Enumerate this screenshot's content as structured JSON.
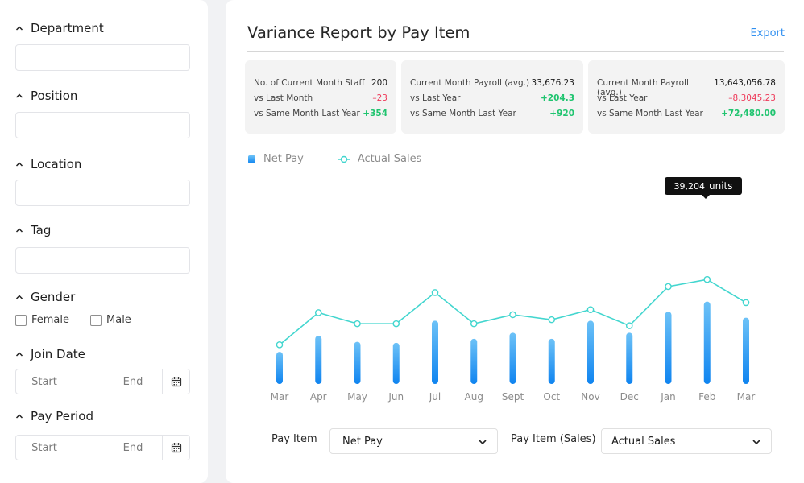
{
  "sidebar": {
    "filters": [
      {
        "label": "Department"
      },
      {
        "label": "Position"
      },
      {
        "label": "Location"
      },
      {
        "label": "Tag"
      },
      {
        "label": "Gender"
      },
      {
        "label": "Join Date"
      },
      {
        "label": "Pay Period"
      }
    ],
    "gender_options": [
      "Female",
      "Male"
    ],
    "date_range": {
      "start": "Start",
      "dash": "–",
      "end": "End"
    }
  },
  "header": {
    "title": "Variance Report by Pay Item",
    "export_label": "Export"
  },
  "stats": [
    {
      "rows": [
        {
          "label": "No. of Current Month Staff",
          "value": "200"
        },
        {
          "label": "vs Last Month",
          "value": "–23"
        },
        {
          "label": "vs Same Month Last Year",
          "value": "+354"
        }
      ]
    },
    {
      "rows": [
        {
          "label": "Current Month Payroll (avg.)",
          "value": "33,676.23"
        },
        {
          "label": "vs Last Year",
          "value": "+204.3"
        },
        {
          "label": "vs Same Month Last Year",
          "value": "+920"
        }
      ]
    },
    {
      "rows": [
        {
          "label": "Current Month Payroll (avg.)",
          "value": "13,643,056.78"
        },
        {
          "label": "vs Last Year",
          "value": "–8,3045.23"
        },
        {
          "label": "vs Same Month Last Year",
          "value": "+72,480.00"
        }
      ]
    }
  ],
  "legend": {
    "bar": "Net Pay",
    "line": "Actual Sales"
  },
  "tooltip": {
    "value": "39,204",
    "unit": "units"
  },
  "chart_data": {
    "type": "bar",
    "categories": [
      "Mar",
      "Apr",
      "May",
      "Jun",
      "Jul",
      "Aug",
      "Sept",
      "Oct",
      "Nov",
      "Dec",
      "Jan",
      "Feb",
      "Mar"
    ],
    "series": [
      {
        "name": "Net Pay",
        "type": "bar",
        "values": [
          32,
          48,
          42,
          41,
          63,
          45,
          51,
          45,
          63,
          51,
          72,
          82,
          66
        ]
      },
      {
        "name": "Actual Sales",
        "type": "line",
        "values": [
          39,
          71,
          60,
          60,
          91,
          60,
          69,
          64,
          74,
          58,
          97,
          104,
          81
        ]
      }
    ],
    "ylim": [
      0,
      125
    ],
    "colors": {
      "bar_top": "#6dc2f7",
      "bar_bottom": "#0f84f0",
      "line": "#43d6cf"
    },
    "grid": false,
    "legend_position": "top-left"
  },
  "controls": {
    "pay_item_label": "Pay Item",
    "pay_item_value": "Net Pay",
    "pay_item_sales_label": "Pay Item (Sales)",
    "pay_item_sales_value": "Actual Sales"
  }
}
